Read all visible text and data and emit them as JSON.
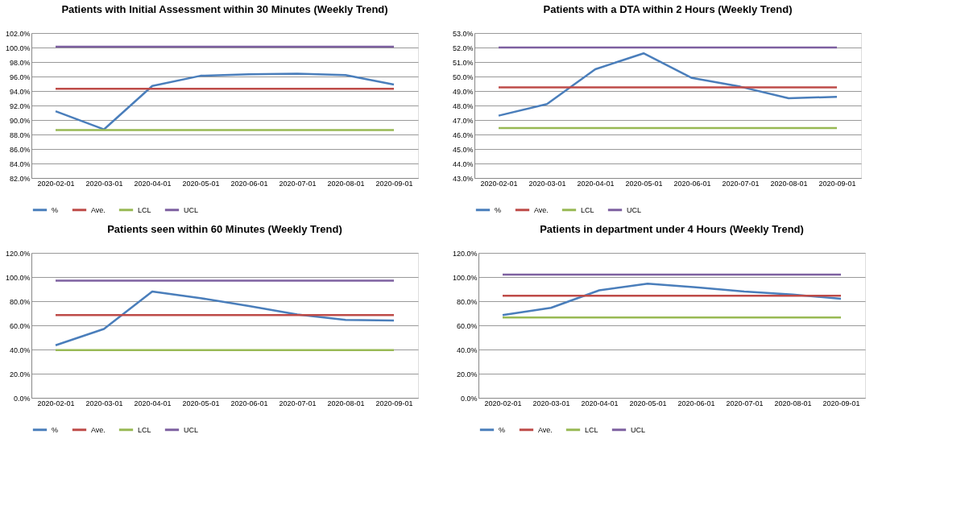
{
  "chart_data": [
    {
      "type": "line",
      "title": "Patients with Initial Assessment within 30 Minutes (Weekly Trend)",
      "categories": [
        "2020-02-01",
        "2020-03-01",
        "2020-04-01",
        "2020-05-01",
        "2020-06-01",
        "2020-07-01",
        "2020-08-01",
        "2020-09-01"
      ],
      "series": [
        {
          "name": "%",
          "color": "#4a7ebb",
          "values": [
            91.2,
            88.7,
            94.7,
            96.1,
            96.3,
            96.4,
            96.2,
            94.9
          ]
        },
        {
          "name": "Ave.",
          "color": "#be4b48",
          "values": [
            94.3,
            94.3,
            94.3,
            94.3,
            94.3,
            94.3,
            94.3,
            94.3
          ]
        },
        {
          "name": "LCL",
          "color": "#98b954",
          "values": [
            88.6,
            88.6,
            88.6,
            88.6,
            88.6,
            88.6,
            88.6,
            88.6
          ]
        },
        {
          "name": "UCL",
          "color": "#7d60a0",
          "values": [
            100.1,
            100.1,
            100.1,
            100.1,
            100.1,
            100.1,
            100.1,
            100.1
          ]
        }
      ],
      "ylim": [
        82,
        102
      ],
      "yticks": [
        {
          "value": 82,
          "label": "82.0%"
        },
        {
          "value": 84,
          "label": "84.0%"
        },
        {
          "value": 86,
          "label": "86.0%"
        },
        {
          "value": 88,
          "label": "88.0%"
        },
        {
          "value": 90,
          "label": "90.0%"
        },
        {
          "value": 92,
          "label": "92.0%"
        },
        {
          "value": 94,
          "label": "94.0%"
        },
        {
          "value": 96,
          "label": "96.0%"
        },
        {
          "value": 98,
          "label": "98.0%"
        },
        {
          "value": 100,
          "label": "100.0%"
        },
        {
          "value": 102,
          "label": "102.0%"
        }
      ],
      "grid": "y",
      "legend": "bottom",
      "marker": "none",
      "line_style": "solid"
    },
    {
      "type": "line",
      "title": "Patients with a DTA within 2 Hours (Weekly Trend)",
      "categories": [
        "2020-02-01",
        "2020-03-01",
        "2020-04-01",
        "2020-05-01",
        "2020-06-01",
        "2020-07-01",
        "2020-08-01",
        "2020-09-01"
      ],
      "series": [
        {
          "name": "%",
          "color": "#4a7ebb",
          "values": [
            47.3,
            48.1,
            50.5,
            51.6,
            49.9,
            49.3,
            48.5,
            48.6
          ]
        },
        {
          "name": "Ave.",
          "color": "#be4b48",
          "values": [
            49.25,
            49.25,
            49.25,
            49.25,
            49.25,
            49.25,
            49.25,
            49.25
          ]
        },
        {
          "name": "LCL",
          "color": "#98b954",
          "values": [
            46.45,
            46.45,
            46.45,
            46.45,
            46.45,
            46.45,
            46.45,
            46.45
          ]
        },
        {
          "name": "UCL",
          "color": "#7d60a0",
          "values": [
            52.0,
            52.0,
            52.0,
            52.0,
            52.0,
            52.0,
            52.0,
            52.0
          ]
        }
      ],
      "ylim": [
        43,
        53
      ],
      "yticks": [
        {
          "value": 43,
          "label": "43.0%"
        },
        {
          "value": 44,
          "label": "44.0%"
        },
        {
          "value": 45,
          "label": "45.0%"
        },
        {
          "value": 46,
          "label": "46.0%"
        },
        {
          "value": 47,
          "label": "47.0%"
        },
        {
          "value": 48,
          "label": "48.0%"
        },
        {
          "value": 49,
          "label": "49.0%"
        },
        {
          "value": 50,
          "label": "50.0%"
        },
        {
          "value": 51,
          "label": "51.0%"
        },
        {
          "value": 52,
          "label": "52.0%"
        },
        {
          "value": 53,
          "label": "53.0%"
        }
      ],
      "grid": "y",
      "legend": "bottom",
      "marker": "none",
      "line_style": "solid"
    },
    {
      "type": "line",
      "title": "Patients seen within 60 Minutes (Weekly Trend)",
      "categories": [
        "2020-02-01",
        "2020-03-01",
        "2020-04-01",
        "2020-05-01",
        "2020-06-01",
        "2020-07-01",
        "2020-08-01",
        "2020-09-01"
      ],
      "series": [
        {
          "name": "%",
          "color": "#4a7ebb",
          "values": [
            43.5,
            57,
            88,
            82.5,
            76,
            69,
            64.5,
            64
          ]
        },
        {
          "name": "Ave.",
          "color": "#be4b48",
          "values": [
            68.5,
            68.5,
            68.5,
            68.5,
            68.5,
            68.5,
            68.5,
            68.5
          ]
        },
        {
          "name": "LCL",
          "color": "#98b954",
          "values": [
            39.5,
            39.5,
            39.5,
            39.5,
            39.5,
            39.5,
            39.5,
            39.5
          ]
        },
        {
          "name": "UCL",
          "color": "#7d60a0",
          "values": [
            97,
            97,
            97,
            97,
            97,
            97,
            97,
            97
          ]
        }
      ],
      "ylim": [
        0,
        120
      ],
      "yticks": [
        {
          "value": 0,
          "label": "0.0%"
        },
        {
          "value": 20,
          "label": "20.0%"
        },
        {
          "value": 40,
          "label": "40.0%"
        },
        {
          "value": 60,
          "label": "60.0%"
        },
        {
          "value": 80,
          "label": "80.0%"
        },
        {
          "value": 100,
          "label": "100.0%"
        },
        {
          "value": 120,
          "label": "120.0%"
        }
      ],
      "grid": "y",
      "legend": "bottom",
      "marker": "none",
      "line_style": "solid"
    },
    {
      "type": "line",
      "title": "Patients in department under 4 Hours (Weekly Trend)",
      "categories": [
        "2020-02-01",
        "2020-03-01",
        "2020-04-01",
        "2020-05-01",
        "2020-06-01",
        "2020-07-01",
        "2020-08-01",
        "2020-09-01"
      ],
      "series": [
        {
          "name": "%",
          "color": "#4a7ebb",
          "values": [
            68.5,
            74.5,
            89,
            94.5,
            91.5,
            88,
            85.5,
            82
          ]
        },
        {
          "name": "Ave.",
          "color": "#be4b48",
          "values": [
            84.5,
            84.5,
            84.5,
            84.5,
            84.5,
            84.5,
            84.5,
            84.5
          ]
        },
        {
          "name": "LCL",
          "color": "#98b954",
          "values": [
            66.5,
            66.5,
            66.5,
            66.5,
            66.5,
            66.5,
            66.5,
            66.5
          ]
        },
        {
          "name": "UCL",
          "color": "#7d60a0",
          "values": [
            102,
            102,
            102,
            102,
            102,
            102,
            102,
            102
          ]
        }
      ],
      "ylim": [
        0,
        120
      ],
      "yticks": [
        {
          "value": 0,
          "label": "0.0%"
        },
        {
          "value": 20,
          "label": "20.0%"
        },
        {
          "value": 40,
          "label": "40.0%"
        },
        {
          "value": 60,
          "label": "60.0%"
        },
        {
          "value": 80,
          "label": "80.0%"
        },
        {
          "value": 100,
          "label": "100.0%"
        },
        {
          "value": 120,
          "label": "120.0%"
        }
      ],
      "grid": "y",
      "legend": "bottom",
      "marker": "none",
      "line_style": "solid"
    }
  ]
}
